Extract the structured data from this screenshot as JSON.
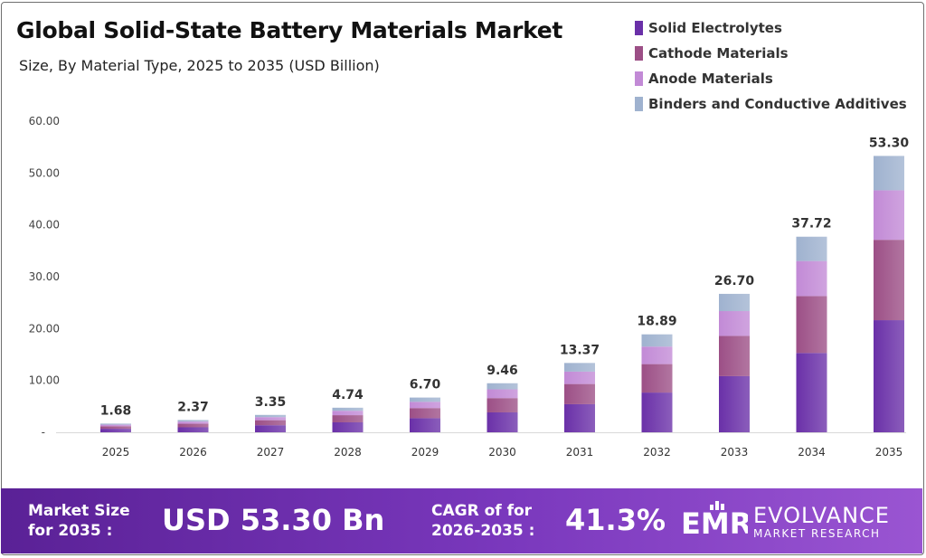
{
  "header": {
    "title": "Global Solid-State Battery Materials Market",
    "subtitle": "Size, By Material Type, 2025 to 2035 (USD Billion)"
  },
  "legend": [
    {
      "label": "Solid Electrolytes",
      "color": "#6a30a8"
    },
    {
      "label": "Cathode Materials",
      "color": "#9c4f86"
    },
    {
      "label": "Anode Materials",
      "color": "#c28ad6"
    },
    {
      "label": "Binders and Conductive Additives",
      "color": "#9fb2cf"
    }
  ],
  "chart_data": {
    "type": "bar",
    "stacked": true,
    "title": "Global Solid-State Battery Materials Market",
    "subtitle": "Size, By Material Type, 2025 to 2035 (USD Billion)",
    "categories": [
      "2025",
      "2026",
      "2027",
      "2028",
      "2029",
      "2030",
      "2031",
      "2032",
      "2033",
      "2034",
      "2035"
    ],
    "totals": [
      1.68,
      2.37,
      3.35,
      4.74,
      6.7,
      9.46,
      13.37,
      18.89,
      26.7,
      37.72,
      53.3
    ],
    "total_labels": [
      "1.68",
      "2.37",
      "3.35",
      "4.74",
      "6.70",
      "9.46",
      "13.37",
      "18.89",
      "26.70",
      "37.72",
      "53.30"
    ],
    "series": [
      {
        "name": "Solid Electrolytes",
        "color": "#6a30a8",
        "values": [
          0.68,
          0.96,
          1.36,
          1.92,
          2.72,
          3.84,
          5.42,
          7.66,
          10.83,
          15.3,
          21.62
        ]
      },
      {
        "name": "Cathode Materials",
        "color": "#9c4f86",
        "values": [
          0.49,
          0.69,
          0.97,
          1.38,
          1.95,
          2.75,
          3.89,
          5.49,
          7.76,
          10.97,
          15.5
        ]
      },
      {
        "name": "Anode Materials",
        "color": "#c28ad6",
        "values": [
          0.3,
          0.42,
          0.6,
          0.85,
          1.2,
          1.69,
          2.39,
          3.38,
          4.78,
          6.76,
          9.55
        ]
      },
      {
        "name": "Binders and Conductive Additives",
        "color": "#9fb2cf",
        "values": [
          0.21,
          0.3,
          0.42,
          0.59,
          0.83,
          1.18,
          1.67,
          2.36,
          3.33,
          4.69,
          6.63
        ]
      }
    ],
    "y_ticks": [
      "-",
      "10.00",
      "20.00",
      "30.00",
      "40.00",
      "50.00",
      "60.00"
    ],
    "ylim": [
      0,
      60
    ],
    "xlabel": "",
    "ylabel": "",
    "grid": false,
    "legend_position": "top-right"
  },
  "footer": {
    "market_size_label": "Market Size\nfor 2035 :",
    "market_size_value": "USD 53.30 Bn",
    "cagr_label": "CAGR of for\n2026-2035 :",
    "cagr_value": "41.3%",
    "brand_name": "EVOLVANCE",
    "brand_tagline": "MARKET RESEARCH",
    "brand_mark": "EMR"
  }
}
